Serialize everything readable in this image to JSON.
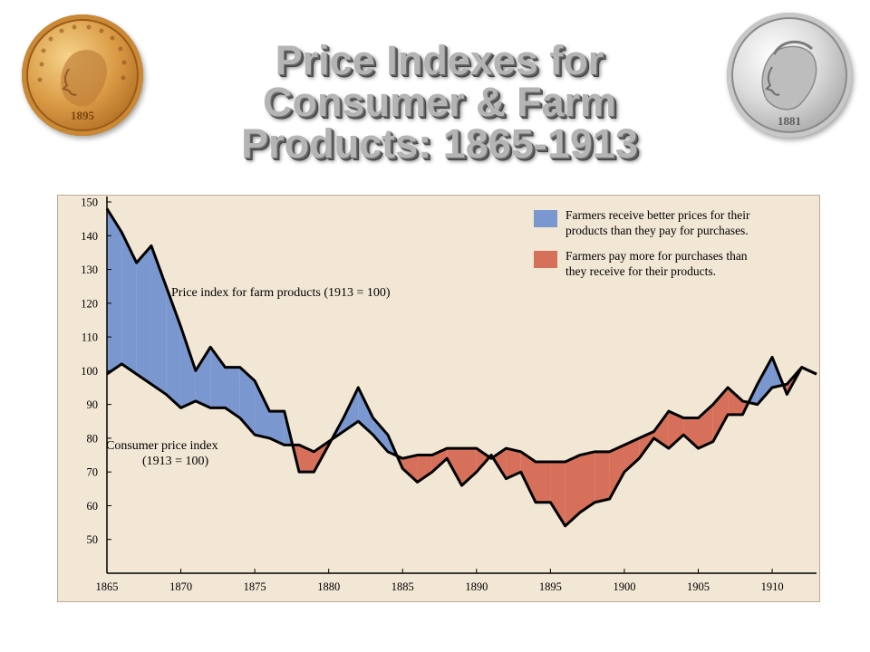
{
  "title_lines": [
    "Price Indexes for",
    "Consumer & Farm",
    "Products:  1865-1913"
  ],
  "coins": {
    "gold_year": "1895",
    "silver_year": "1881"
  },
  "colors": {
    "background": "#f2e6d4",
    "blue": "#7b97cf",
    "red": "#d6705a",
    "line": "#000000"
  },
  "chart_data": {
    "type": "area",
    "title": "Price Indexes for Consumer & Farm Products:  1865-1913",
    "xlim": [
      1865,
      1913
    ],
    "ylim": [
      40,
      150
    ],
    "x_ticks": [
      1865,
      1870,
      1875,
      1880,
      1885,
      1890,
      1895,
      1900,
      1905,
      1910
    ],
    "y_ticks": [
      50,
      60,
      70,
      80,
      90,
      100,
      110,
      120,
      130,
      140,
      150
    ],
    "x": [
      1865,
      1866,
      1867,
      1868,
      1869,
      1870,
      1871,
      1872,
      1873,
      1874,
      1875,
      1876,
      1877,
      1878,
      1879,
      1880,
      1881,
      1882,
      1883,
      1884,
      1885,
      1886,
      1887,
      1888,
      1889,
      1890,
      1891,
      1892,
      1893,
      1894,
      1895,
      1896,
      1897,
      1898,
      1899,
      1900,
      1901,
      1902,
      1903,
      1904,
      1905,
      1906,
      1907,
      1908,
      1909,
      1910,
      1911,
      1912,
      1913
    ],
    "series": [
      {
        "name": "Price index for farm products (1913 = 100)",
        "values": [
          148,
          141,
          132,
          137,
          125,
          113,
          100,
          107,
          101,
          101,
          97,
          88,
          88,
          70,
          70,
          78,
          86,
          95,
          86,
          81,
          71,
          67,
          70,
          74,
          66,
          70,
          75,
          68,
          70,
          61,
          61,
          54,
          58,
          61,
          62,
          70,
          74,
          80,
          77,
          81,
          77,
          79,
          87,
          87,
          96,
          104,
          93,
          101,
          99
        ]
      },
      {
        "name": "Consumer price index (1913 = 100)",
        "values": [
          99,
          102,
          99,
          96,
          93,
          89,
          91,
          89,
          89,
          86,
          81,
          80,
          78,
          78,
          76,
          79,
          82,
          85,
          81,
          76,
          74,
          75,
          75,
          77,
          77,
          77,
          74,
          77,
          76,
          73,
          73,
          73,
          75,
          76,
          76,
          78,
          80,
          82,
          88,
          86,
          86,
          90,
          95,
          91,
          90,
          95,
          96,
          101,
          99
        ]
      }
    ],
    "annotations": {
      "farm_label": "Price index for farm products (1913 = 100)",
      "cpi_label_1": "Consumer price index",
      "cpi_label_2": "(1913 = 100)"
    },
    "legend": [
      {
        "color": "#7b97cf",
        "lines": [
          "Farmers receive better prices for their",
          "products than they pay for purchases."
        ]
      },
      {
        "color": "#d6705a",
        "lines": [
          "Farmers pay more for purchases than",
          "they receive for their products."
        ]
      }
    ],
    "legend_position": "top-right",
    "grid": false
  }
}
